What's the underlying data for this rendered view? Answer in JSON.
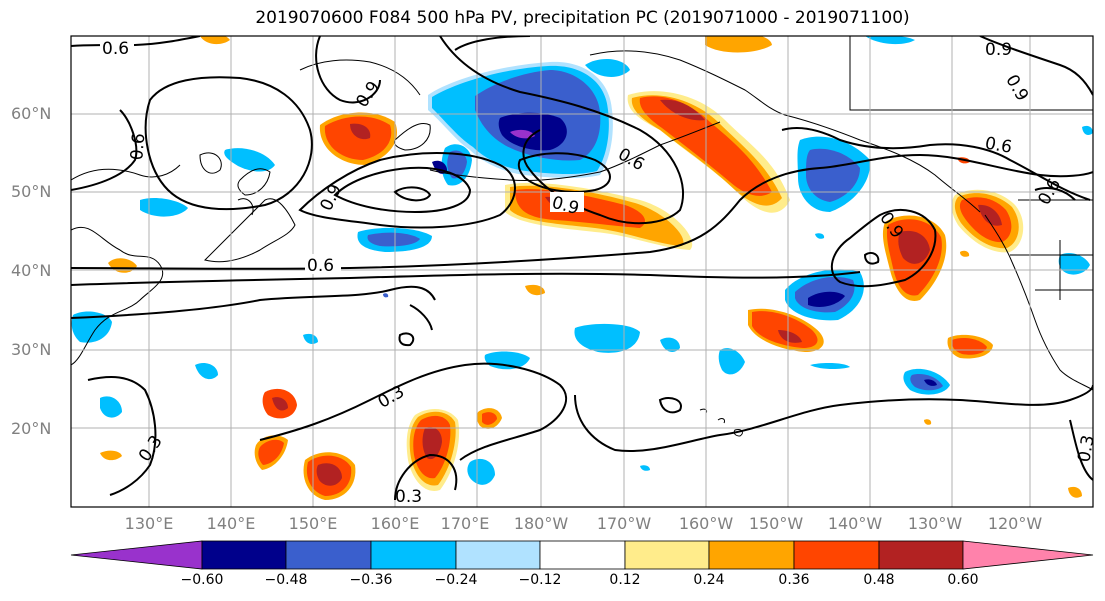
{
  "title": "2019070600 F084 500 hPa PV, precipitation PC (2019071000 - 2019071100)",
  "lat_labels": [
    "60°N",
    "50°N",
    "40°N",
    "30°N",
    "20°N"
  ],
  "lon_labels": [
    "130°E",
    "140°E",
    "150°E",
    "160°E",
    "170°E",
    "180°W",
    "170°W",
    "160°W",
    "150°W",
    "140°W",
    "130°W",
    "120°W"
  ],
  "contour_labels": [
    "0.6",
    "0.9",
    "0.9",
    "0.6",
    "0.6",
    "0.9",
    "0.6",
    "0.6",
    "0.9",
    "0.9",
    "0.9",
    "0.6",
    "0.3",
    "0.3",
    "0.3",
    "0.3"
  ],
  "colorbar": {
    "ticks": [
      "−0.60",
      "−0.48",
      "−0.36",
      "−0.24",
      "−0.12",
      "0.12",
      "0.24",
      "0.36",
      "0.48",
      "0.60"
    ],
    "colors": [
      "#9932CC",
      "#00008B",
      "#3A5FCD",
      "#00BFFF",
      "#B0E2FF",
      "#FFFFFF",
      "#FFEC8B",
      "#FFA500",
      "#FF4500",
      "#B22222",
      "#FF82AB"
    ]
  }
}
